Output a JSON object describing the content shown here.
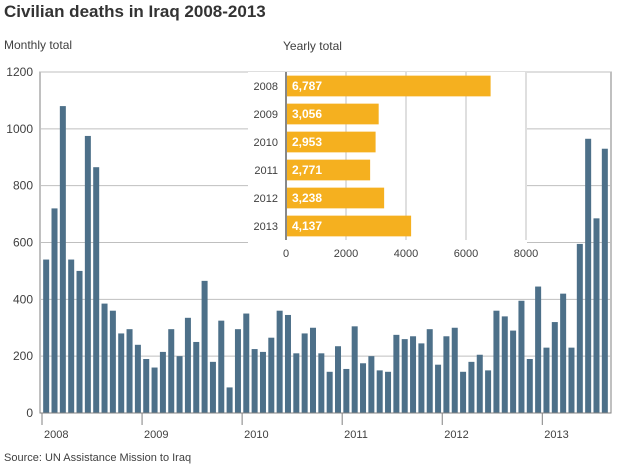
{
  "title": "Civilian deaths in Iraq 2008-2013",
  "source": "Source: UN Assistance Mission to Iraq",
  "colors": {
    "main_bar": "#4d7089",
    "inset_bar": "#f5b01f",
    "grid": "#bfbfbf",
    "axis": "#808080",
    "text": "#404040"
  },
  "chart_data": [
    {
      "type": "bar",
      "subtitle": "Monthly total",
      "x_tick_labels": [
        "2008",
        "2009",
        "2010",
        "2011",
        "2012",
        "2013"
      ],
      "y_tick_labels": [
        "0",
        "200",
        "400",
        "600",
        "800",
        "1000",
        "1200"
      ],
      "ylim": [
        0,
        1200
      ],
      "grid": true,
      "values": [
        540,
        720,
        1080,
        540,
        500,
        975,
        865,
        385,
        360,
        280,
        295,
        240,
        190,
        160,
        215,
        295,
        200,
        335,
        250,
        465,
        180,
        325,
        90,
        295,
        350,
        225,
        215,
        265,
        360,
        345,
        210,
        280,
        300,
        210,
        145,
        235,
        155,
        305,
        175,
        200,
        150,
        145,
        275,
        260,
        270,
        245,
        295,
        170,
        270,
        300,
        145,
        180,
        205,
        150,
        360,
        340,
        290,
        395,
        190,
        445,
        230,
        320,
        420,
        230,
        595,
        965,
        685,
        930
      ]
    },
    {
      "type": "bar",
      "orientation": "horizontal",
      "subtitle": "Yearly total",
      "categories": [
        "2008",
        "2009",
        "2010",
        "2011",
        "2012",
        "2013"
      ],
      "values": [
        6787,
        3056,
        2953,
        2771,
        3238,
        4137
      ],
      "value_labels": [
        "6,787",
        "3,056",
        "2,953",
        "2,771",
        "3,238",
        "4,137"
      ],
      "x_tick_labels": [
        "0",
        "2000",
        "4000",
        "6000",
        "8000"
      ],
      "xlim": [
        0,
        8000
      ],
      "grid": true
    }
  ]
}
